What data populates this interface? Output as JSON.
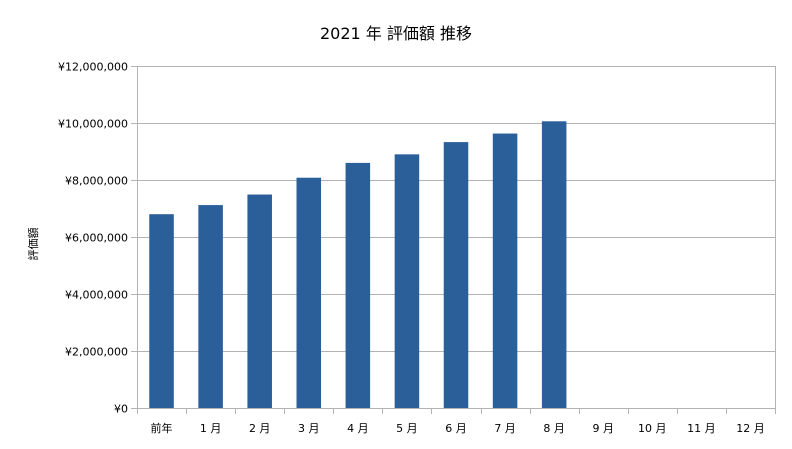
{
  "chart_data": {
    "type": "bar",
    "title": "2021 年 評価額 推移",
    "xlabel": "",
    "ylabel": "評価額",
    "categories": [
      "前年",
      "1 月",
      "2 月",
      "3 月",
      "4 月",
      "5 月",
      "6 月",
      "7 月",
      "8 月",
      "9 月",
      "10 月",
      "11 月",
      "12 月"
    ],
    "values": [
      6800000,
      7120000,
      7490000,
      8080000,
      8600000,
      8900000,
      9330000,
      9630000,
      10060000,
      null,
      null,
      null,
      null
    ],
    "ylim": [
      0,
      12000000
    ],
    "yticks": [
      0,
      2000000,
      4000000,
      6000000,
      8000000,
      10000000,
      12000000
    ],
    "ytick_labels": [
      "¥0",
      "¥2,000,000",
      "¥4,000,000",
      "¥6,000,000",
      "¥8,000,000",
      "¥10,000,000",
      "¥12,000,000"
    ],
    "grid": true,
    "legend": "none",
    "bar_color": "#2b5f99",
    "grid_color": "#b3b3b3",
    "axis_color": "#b3b3b3"
  }
}
